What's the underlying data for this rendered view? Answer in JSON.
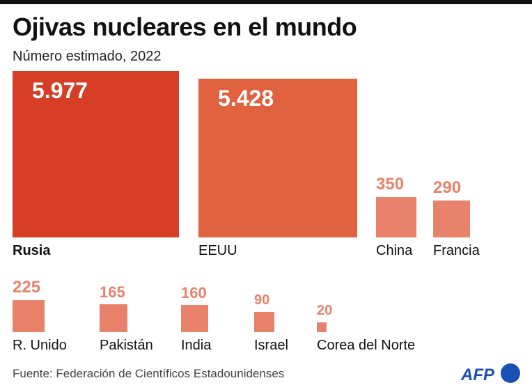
{
  "title": "Ojivas nucleares en el mundo",
  "subtitle": "Número estimado, 2022",
  "source": "Fuente: Federación de Científicos Estadounidenses",
  "logo": "AFP",
  "colors": {
    "max": "#d63e26",
    "second": "#e0623f",
    "others": "#e8826a",
    "logo": "#1a4fb5"
  },
  "chart_data": {
    "type": "proportional-area squares",
    "categories": [
      "Rusia",
      "EEUU",
      "China",
      "Francia",
      "R. Unido",
      "Pakistán",
      "India",
      "Israel",
      "Corea del Norte"
    ],
    "values": [
      5977,
      5428,
      350,
      290,
      225,
      165,
      160,
      90,
      20
    ],
    "value_labels": [
      "5.977",
      "5.428",
      "350",
      "290",
      "225",
      "165",
      "160",
      "90",
      "20"
    ]
  }
}
